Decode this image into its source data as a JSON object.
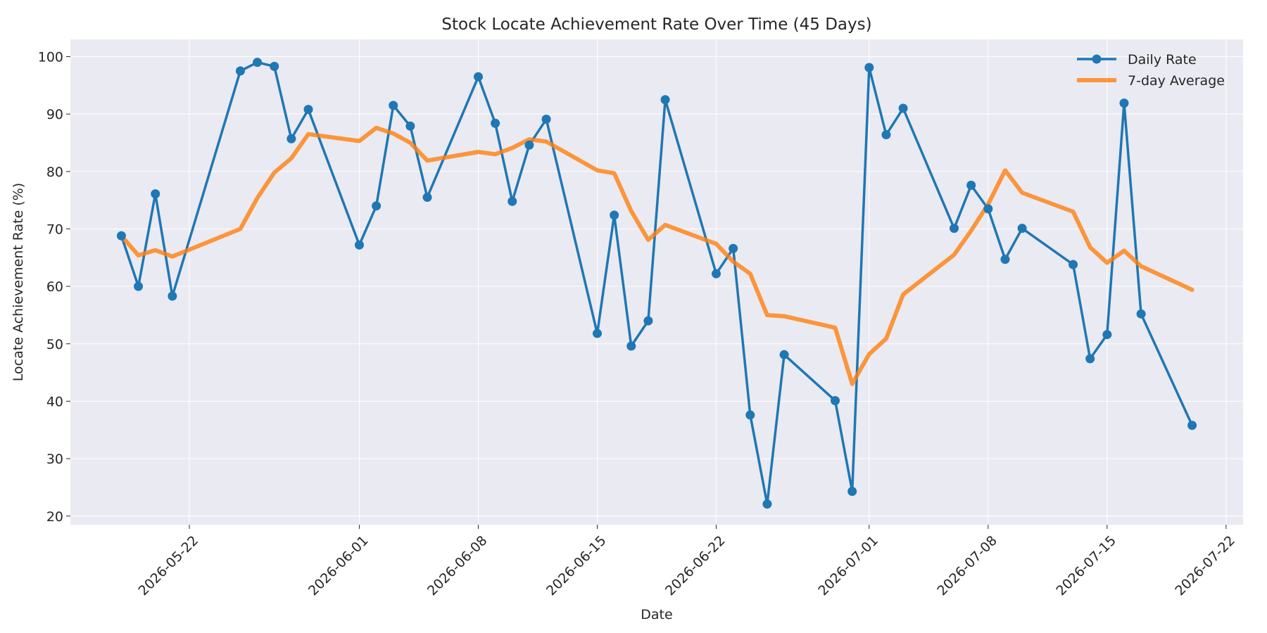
{
  "chart_data": {
    "type": "line",
    "title": "Stock Locate Achievement Rate Over Time (45 Days)",
    "xlabel": "Date",
    "ylabel": "Locate Achievement Rate (%)",
    "xlim": [
      "2026-05-15",
      "2026-07-23"
    ],
    "ylim": [
      18.5,
      103
    ],
    "y_ticks": [
      20,
      30,
      40,
      50,
      60,
      70,
      80,
      90,
      100
    ],
    "x_ticks": [
      "2026-05-22",
      "2026-06-01",
      "2026-06-08",
      "2026-06-15",
      "2026-06-22",
      "2026-07-01",
      "2026-07-08",
      "2026-07-15",
      "2026-07-22"
    ],
    "grid": true,
    "legend_position": "top-right",
    "x": [
      "2026-05-18",
      "2026-05-19",
      "2026-05-20",
      "2026-05-21",
      "2026-05-25",
      "2026-05-26",
      "2026-05-27",
      "2026-05-28",
      "2026-05-29",
      "2026-06-01",
      "2026-06-02",
      "2026-06-03",
      "2026-06-04",
      "2026-06-05",
      "2026-06-08",
      "2026-06-09",
      "2026-06-10",
      "2026-06-11",
      "2026-06-12",
      "2026-06-15",
      "2026-06-16",
      "2026-06-17",
      "2026-06-18",
      "2026-06-19",
      "2026-06-22",
      "2026-06-23",
      "2026-06-24",
      "2026-06-25",
      "2026-06-26",
      "2026-06-29",
      "2026-06-30",
      "2026-07-01",
      "2026-07-02",
      "2026-07-03",
      "2026-07-06",
      "2026-07-07",
      "2026-07-08",
      "2026-07-09",
      "2026-07-10",
      "2026-07-13",
      "2026-07-14",
      "2026-07-15",
      "2026-07-16",
      "2026-07-17",
      "2026-07-20"
    ],
    "series": [
      {
        "name": "Daily Rate",
        "color": "#1f77b4",
        "marker": "circle",
        "values": [
          68.8,
          60.0,
          76.1,
          58.3,
          97.5,
          99.0,
          98.3,
          85.7,
          90.8,
          67.2,
          74.0,
          91.5,
          87.9,
          75.5,
          96.5,
          88.4,
          74.8,
          84.6,
          89.1,
          51.8,
          72.4,
          49.6,
          54.0,
          92.5,
          62.2,
          66.6,
          37.6,
          22.1,
          48.1,
          40.1,
          24.3,
          98.1,
          86.4,
          91.0,
          70.1,
          77.6,
          73.5,
          64.7,
          70.1,
          63.8,
          47.4,
          51.6,
          91.9,
          55.2,
          35.8
        ]
      },
      {
        "name": "7-day Average",
        "color": "#ff7f0e",
        "marker": "none",
        "values": [
          68.8,
          65.4,
          66.3,
          65.2,
          70.0,
          75.4,
          79.8,
          82.3,
          86.5,
          85.3,
          87.6,
          86.6,
          85.0,
          81.9,
          83.4,
          83.0,
          84.1,
          85.6,
          85.2,
          80.2,
          79.7,
          73.1,
          68.1,
          70.7,
          67.4,
          64.3,
          62.2,
          55.0,
          54.8,
          52.8,
          43.0,
          48.2,
          50.9,
          58.6,
          65.5,
          69.7,
          74.3,
          80.2,
          76.3,
          73.0,
          66.8,
          64.1,
          66.2,
          63.5,
          59.4
        ]
      }
    ]
  }
}
